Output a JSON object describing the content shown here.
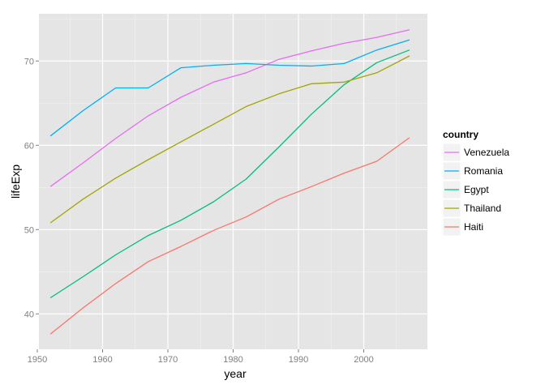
{
  "chart_data": {
    "type": "line",
    "xlabel": "year",
    "ylabel": "lifeExp",
    "xlim": [
      1950.25,
      2009.75
    ],
    "ylim": [
      35.8,
      75.6
    ],
    "x_ticks": [
      1950,
      1960,
      1970,
      1980,
      1990,
      2000
    ],
    "y_ticks": [
      40,
      50,
      60,
      70
    ],
    "grid": true,
    "legend_title": "country",
    "legend_position": "right",
    "x": [
      1952,
      1957,
      1962,
      1967,
      1972,
      1977,
      1982,
      1987,
      1992,
      1997,
      2002,
      2007
    ],
    "series": [
      {
        "name": "Venezuela",
        "color": "#E76BF3",
        "values": [
          55.1,
          57.9,
          60.8,
          63.5,
          65.7,
          67.5,
          68.6,
          70.2,
          71.2,
          72.1,
          72.8,
          73.7
        ]
      },
      {
        "name": "Romania",
        "color": "#00B0F6",
        "values": [
          61.1,
          64.1,
          66.8,
          66.8,
          69.2,
          69.5,
          69.7,
          69.5,
          69.4,
          69.7,
          71.3,
          72.5
        ]
      },
      {
        "name": "Egypt",
        "color": "#00BF7D",
        "values": [
          41.9,
          44.4,
          47.0,
          49.3,
          51.1,
          53.3,
          56.0,
          59.8,
          63.7,
          67.2,
          69.8,
          71.3
        ]
      },
      {
        "name": "Thailand",
        "color": "#A3A500",
        "values": [
          50.8,
          53.6,
          56.1,
          58.3,
          60.4,
          62.5,
          64.6,
          66.1,
          67.3,
          67.5,
          68.6,
          70.6
        ]
      },
      {
        "name": "Haiti",
        "color": "#F8766D",
        "values": [
          37.6,
          40.7,
          43.6,
          46.2,
          48.0,
          49.9,
          51.5,
          53.6,
          55.1,
          56.7,
          58.1,
          60.9
        ]
      }
    ]
  }
}
